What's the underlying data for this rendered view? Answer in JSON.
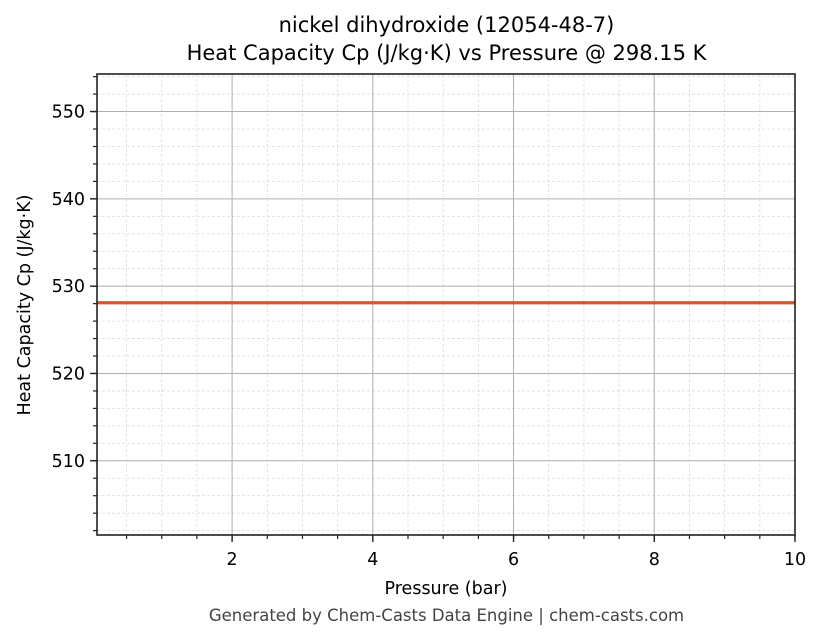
{
  "chart_data": {
    "type": "line",
    "title": "nickel dihydroxide (12054-48-7)",
    "subtitle": "Heat Capacity Cp (J/kg·K) vs Pressure @ 298.15 K",
    "xlabel": "Pressure (bar)",
    "ylabel": "Heat Capacity Cp (J/kg·K)",
    "xlim": [
      0.08,
      10
    ],
    "ylim": [
      501.5,
      554.3
    ],
    "x_ticks": [
      2,
      4,
      6,
      8,
      10
    ],
    "x_tick_labels": [
      "2",
      "4",
      "6",
      "8",
      "10"
    ],
    "y_ticks": [
      510,
      520,
      530,
      540,
      550
    ],
    "y_tick_labels": [
      "510",
      "520",
      "530",
      "540",
      "550"
    ],
    "x_minor_step": 0.5,
    "y_minor_step": 2,
    "grid": true,
    "legend": null,
    "series": [
      {
        "name": "Heat Capacity Cp",
        "color": "#d4582a",
        "x": [
          0.08,
          1,
          2,
          3,
          4,
          5,
          6,
          7,
          8,
          9,
          10
        ],
        "values": [
          528.1,
          528.1,
          528.1,
          528.1,
          528.1,
          528.1,
          528.1,
          528.1,
          528.1,
          528.1,
          528.1
        ]
      }
    ]
  },
  "footer": "Generated by Chem-Casts Data Engine | chem-casts.com"
}
